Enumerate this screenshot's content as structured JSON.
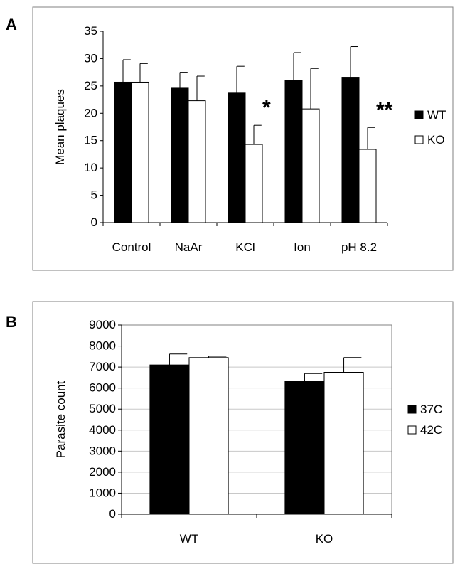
{
  "panels": [
    {
      "letter": "A"
    },
    {
      "letter": "B"
    }
  ],
  "chart_data": [
    {
      "type": "bar",
      "ylabel": "Mean plaques",
      "xlabel": "",
      "ylim": [
        0,
        35
      ],
      "yticks": [
        0,
        5,
        10,
        15,
        20,
        25,
        30,
        35
      ],
      "categories": [
        "Control",
        "NaAr",
        "KCl",
        "Ion",
        "pH 8.2"
      ],
      "series": [
        {
          "name": "WT",
          "color": "#000000",
          "values": [
            25.7,
            24.6,
            23.7,
            26.0,
            26.6
          ],
          "errors": [
            4.1,
            2.9,
            4.9,
            5.1,
            5.6
          ]
        },
        {
          "name": "KO",
          "color": "#ffffff",
          "values": [
            25.7,
            22.3,
            14.3,
            20.8,
            13.4
          ],
          "errors": [
            3.4,
            4.5,
            3.5,
            7.4,
            4.0
          ]
        }
      ],
      "annotations": [
        {
          "category": "KCl",
          "text": "*"
        },
        {
          "category": "pH 8.2",
          "text": "**"
        }
      ],
      "legend": "right",
      "grid": false
    },
    {
      "type": "bar",
      "ylabel": "Parasite count",
      "xlabel": "",
      "ylim": [
        0,
        9000
      ],
      "yticks": [
        0,
        1000,
        2000,
        3000,
        4000,
        5000,
        6000,
        7000,
        8000,
        9000
      ],
      "categories": [
        "WT",
        "KO"
      ],
      "series": [
        {
          "name": "37C",
          "color": "#000000",
          "values": [
            7100,
            6330
          ],
          "errors": [
            520,
            360
          ]
        },
        {
          "name": "42C",
          "color": "#ffffff",
          "values": [
            7450,
            6750
          ],
          "errors": [
            60,
            700
          ]
        }
      ],
      "annotations": [],
      "legend": "right",
      "grid": true
    }
  ]
}
